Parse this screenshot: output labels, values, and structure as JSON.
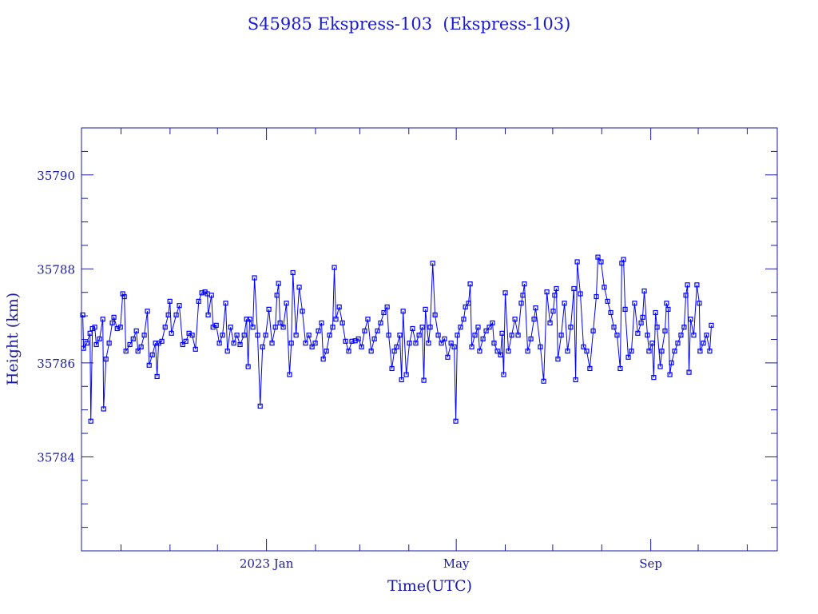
{
  "chart_data": {
    "type": "line",
    "title": "S45985 Ekspress-103  (Ekspress-103)",
    "xlabel": "Time(UTC)",
    "ylabel": "Height (km)",
    "x_units": "days since 2023-01-01",
    "xlim": [
      -117,
      323
    ],
    "ylim": [
      35782,
      35791
    ],
    "grid": false,
    "x_ticks": [
      {
        "value": 0,
        "label": "2023 Jan"
      },
      {
        "value": 120,
        "label": "May"
      },
      {
        "value": 243,
        "label": "Sep"
      }
    ],
    "x_minor_ticks": [
      -92,
      -61,
      -31,
      31,
      59,
      90,
      151,
      181,
      212,
      273,
      304
    ],
    "y_ticks": [
      {
        "value": 35784,
        "label": "35784"
      },
      {
        "value": 35786,
        "label": "35786"
      },
      {
        "value": 35788,
        "label": "35788"
      },
      {
        "value": 35790,
        "label": "35790"
      }
    ],
    "series": [
      {
        "name": "Height",
        "color": "#0000ff",
        "marker": "square",
        "x": [
          -116.2,
          -115.7,
          -113.6,
          -111.6,
          -111.1,
          -110.1,
          -108.6,
          -107.6,
          -105.6,
          -103.5,
          -103.0,
          -101.5,
          -99.5,
          -97.5,
          -96.5,
          -94.4,
          -92.4,
          -90.9,
          -89.9,
          -88.9,
          -86.4,
          -84.3,
          -82.3,
          -81.3,
          -79.3,
          -77.3,
          -75.3,
          -74.2,
          -72.2,
          -70.2,
          -69.2,
          -68.2,
          -66.2,
          -64.1,
          -62.1,
          -61.1,
          -60.1,
          -57.1,
          -55.1,
          -53.0,
          -51.0,
          -49.0,
          -47.0,
          -44.9,
          -42.9,
          -40.9,
          -38.9,
          -37.4,
          -36.9,
          -34.8,
          -33.8,
          -31.8,
          -29.8,
          -27.8,
          -25.8,
          -24.7,
          -22.7,
          -20.7,
          -18.7,
          -16.7,
          -14.1,
          -12.6,
          -11.6,
          -10.6,
          -8.6,
          -7.6,
          -5.6,
          -4.0,
          -2.5,
          -0.5,
          1.5,
          3.5,
          5.6,
          6.6,
          7.6,
          8.6,
          10.6,
          12.6,
          14.6,
          15.7,
          16.7,
          18.7,
          20.7,
          22.7,
          24.7,
          26.8,
          28.8,
          30.8,
          32.8,
          34.8,
          35.9,
          37.9,
          39.9,
          41.9,
          42.9,
          43.9,
          46.0,
          48.0,
          50.0,
          52.0,
          54.0,
          56.1,
          58.1,
          60.1,
          62.1,
          64.1,
          66.2,
          68.2,
          70.2,
          72.2,
          74.2,
          76.3,
          77.3,
          79.3,
          80.8,
          82.3,
          84.3,
          85.4,
          86.4,
          88.4,
          90.4,
          92.4,
          94.4,
          96.5,
          98.5,
          99.5,
          100.5,
          102.5,
          103.5,
          105.1,
          106.6,
          108.6,
          110.6,
          112.6,
          114.6,
          116.7,
          118.7,
          119.7,
          120.7,
          122.7,
          124.7,
          125.8,
          127.8,
          128.8,
          129.8,
          131.8,
          133.8,
          134.8,
          136.9,
          138.9,
          140.9,
          142.9,
          143.9,
          146.0,
          148.0,
          149.0,
          150.0,
          151.0,
          153.0,
          155.1,
          157.1,
          159.1,
          161.1,
          162.1,
          163.1,
          165.2,
          167.2,
          169.2,
          170.2,
          173.2,
          175.3,
          177.3,
          179.3,
          181.3,
          182.3,
          183.3,
          184.3,
          186.4,
          188.4,
          190.4,
          192.4,
          194.4,
          195.5,
          196.5,
          198.5,
          200.5,
          202.5,
          204.5,
          206.6,
          208.6,
          209.6,
          211.6,
          213.6,
          215.7,
          217.7,
          219.7,
          221.7,
          223.7,
          224.7,
          225.8,
          226.8,
          228.8,
          230.8,
          232.8,
          234.8,
          236.9,
          237.9,
          238.9,
          240.9,
          241.9,
          243.9,
          244.9,
          246.0,
          247.0,
          249.0,
          250.0,
          252.0,
          253.0,
          254.0,
          255.1,
          256.1,
          258.1,
          260.1,
          262.1,
          264.1,
          265.2,
          266.2,
          267.2,
          268.2,
          270.2,
          272.2,
          273.7,
          274.2,
          276.3,
          278.3,
          280.3,
          281.3
        ],
        "y": [
          35787.02,
          35786.31,
          35786.42,
          35786.63,
          35784.76,
          35786.73,
          35786.76,
          35786.39,
          35786.51,
          35786.93,
          35785.02,
          35786.08,
          35786.42,
          35786.85,
          35786.97,
          35786.73,
          35786.76,
          35787.47,
          35787.41,
          35786.25,
          35786.39,
          35786.51,
          35786.68,
          35786.25,
          35786.34,
          35786.59,
          35787.1,
          35785.95,
          35786.17,
          35786.42,
          35785.71,
          35786.42,
          35786.46,
          35786.76,
          35787.02,
          35787.31,
          35786.63,
          35787.02,
          35787.22,
          35786.39,
          35786.46,
          35786.63,
          35786.59,
          35786.29,
          35787.31,
          35787.49,
          35787.51,
          35787.47,
          35787.02,
          35787.44,
          35786.76,
          35786.8,
          35786.42,
          35786.59,
          35787.27,
          35786.25,
          35786.76,
          35786.42,
          35786.59,
          35786.39,
          35786.59,
          35786.93,
          35785.92,
          35786.93,
          35786.76,
          35787.81,
          35786.59,
          35785.08,
          35786.34,
          35786.59,
          35787.14,
          35786.42,
          35786.76,
          35787.44,
          35787.69,
          35786.85,
          35786.76,
          35787.27,
          35785.75,
          35786.42,
          35787.92,
          35786.59,
          35787.61,
          35787.1,
          35786.42,
          35786.59,
          35786.34,
          35786.42,
          35786.68,
          35786.85,
          35786.08,
          35786.25,
          35786.59,
          35786.76,
          35788.03,
          35786.93,
          35787.19,
          35786.85,
          35786.46,
          35786.25,
          35786.46,
          35786.47,
          35786.51,
          35786.34,
          35786.68,
          35786.93,
          35786.25,
          35786.51,
          35786.68,
          35786.85,
          35787.07,
          35787.19,
          35786.59,
          35785.88,
          35786.25,
          35786.34,
          35786.59,
          35785.64,
          35787.1,
          35785.75,
          35786.42,
          35786.73,
          35786.42,
          35786.59,
          35786.76,
          35785.63,
          35787.14,
          35786.42,
          35786.76,
          35788.12,
          35787.02,
          35786.59,
          35786.42,
          35786.51,
          35786.12,
          35786.42,
          35786.34,
          35784.76,
          35786.59,
          35786.76,
          35786.93,
          35787.19,
          35787.27,
          35787.68,
          35786.34,
          35786.59,
          35786.76,
          35786.25,
          35786.51,
          35786.68,
          35786.76,
          35786.85,
          35786.42,
          35786.25,
          35786.17,
          35786.63,
          35785.75,
          35787.49,
          35786.25,
          35786.59,
          35786.93,
          35786.59,
          35787.27,
          35787.44,
          35787.68,
          35786.25,
          35786.51,
          35786.93,
          35787.17,
          35786.34,
          35785.61,
          35787.51,
          35786.85,
          35787.1,
          35787.44,
          35787.58,
          35786.08,
          35786.59,
          35787.27,
          35786.25,
          35786.76,
          35787.58,
          35785.64,
          35788.15,
          35787.47,
          35786.34,
          35786.25,
          35785.88,
          35786.68,
          35787.41,
          35788.25,
          35788.15,
          35787.61,
          35787.31,
          35787.07,
          35786.76,
          35786.59,
          35785.88,
          35788.12,
          35788.2,
          35787.14,
          35786.12,
          35786.25,
          35787.27,
          35786.63,
          35786.85,
          35786.97,
          35787.53,
          35786.59,
          35786.25,
          35786.42,
          35785.69,
          35787.07,
          35786.76,
          35785.92,
          35786.25,
          35786.68,
          35787.27,
          35787.14,
          35785.75,
          35786.0,
          35786.25,
          35786.42,
          35786.59,
          35786.76,
          35787.44,
          35787.66,
          35785.8,
          35786.93,
          35786.59,
          35787.66,
          35787.27,
          35786.25,
          35786.42,
          35786.59,
          35786.25,
          35786.8
        ]
      }
    ]
  }
}
